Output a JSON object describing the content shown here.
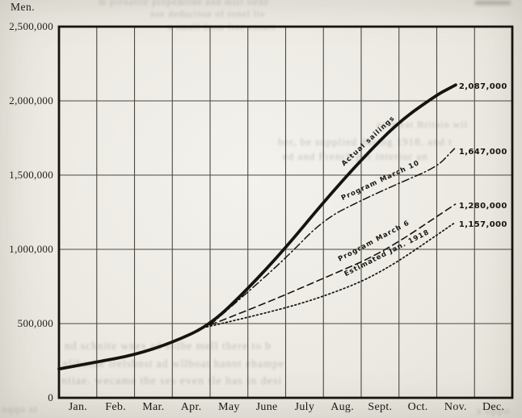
{
  "figure": {
    "kind": "scanned book chart, cumulative American troop sailings 1918",
    "unit_title": "Men.",
    "ink_color": "#1d1c18",
    "paper_color": "#eeece6"
  },
  "chart_data": {
    "type": "line",
    "title": "",
    "xlabel": "",
    "ylabel": "Men.",
    "grid": "on",
    "legend_position": "labels along lines",
    "x_axis": {
      "months": [
        "Jan.",
        "Feb.",
        "Mar.",
        "Apr.",
        "May",
        "June",
        "July",
        "Aug.",
        "Sept.",
        "Oct.",
        "Nov.",
        "Dec."
      ]
    },
    "y_axis": {
      "min": 0,
      "max": 2500000,
      "tick_interval": 500000,
      "tick_labels": [
        "0",
        "500,000",
        "1,000,000",
        "1,500,000",
        "2,000,000",
        "2,500,000"
      ]
    },
    "series": [
      {
        "id": "actual",
        "name": "Actual sailings",
        "style": "solid-thick",
        "end_value": 2087000,
        "end_value_label": "2,087,000",
        "points": [
          [
            0,
            194000
          ],
          [
            1,
            241000
          ],
          [
            2,
            289000
          ],
          [
            3,
            372000
          ],
          [
            4,
            490000
          ],
          [
            5,
            734000
          ],
          [
            6,
            1010000
          ],
          [
            7,
            1317000
          ],
          [
            8,
            1603000
          ],
          [
            9,
            1860000
          ],
          [
            10,
            2040000
          ],
          [
            10.35,
            2087000
          ]
        ]
      },
      {
        "id": "march10",
        "name": "Program March 10",
        "style": "dash-dot",
        "end_value": 1647000,
        "end_value_label": "1,647,000",
        "points": [
          [
            4,
            490000
          ],
          [
            5,
            712000
          ],
          [
            6,
            940000
          ],
          [
            7,
            1200000
          ],
          [
            8,
            1330000
          ],
          [
            9,
            1445000
          ],
          [
            10,
            1555000
          ],
          [
            10.35,
            1647000
          ]
        ]
      },
      {
        "id": "march6",
        "name": "Program March 6",
        "style": "dashed",
        "end_value": 1280000,
        "end_value_label": "1,280,000",
        "points": [
          [
            4,
            490000
          ],
          [
            5.5,
            640000
          ],
          [
            7,
            805000
          ],
          [
            8.55,
            975000
          ],
          [
            10.35,
            1280000
          ]
        ]
      },
      {
        "id": "estimated",
        "name": "Estimated Jan. 1918",
        "style": "dotted",
        "end_value": 1157000,
        "end_value_label": "1,157,000",
        "points": [
          [
            3.7,
            465000
          ],
          [
            5.5,
            570000
          ],
          [
            7,
            680000
          ],
          [
            8.5,
            835000
          ],
          [
            10.35,
            1157000
          ]
        ]
      }
    ]
  },
  "artifacts": {
    "note": "faint print bleed-through from adjacent page text",
    "fragments": [
      "m pienatile propemtide and mstt ilene",
      "nse deduction of tonel liv",
      "a small from line ensuri",
      "an great Britain wil",
      "ber, be supplied during 1918, and t",
      "ed and French per interior an",
      "nd schnite wnes ad solbe mell there to b",
      "elibashe irelsbnst ad wllboat hannt ehampe",
      "ntiae. wecame the ses even tle has in desi",
      "oqqo st",
      "s oppo"
    ]
  }
}
